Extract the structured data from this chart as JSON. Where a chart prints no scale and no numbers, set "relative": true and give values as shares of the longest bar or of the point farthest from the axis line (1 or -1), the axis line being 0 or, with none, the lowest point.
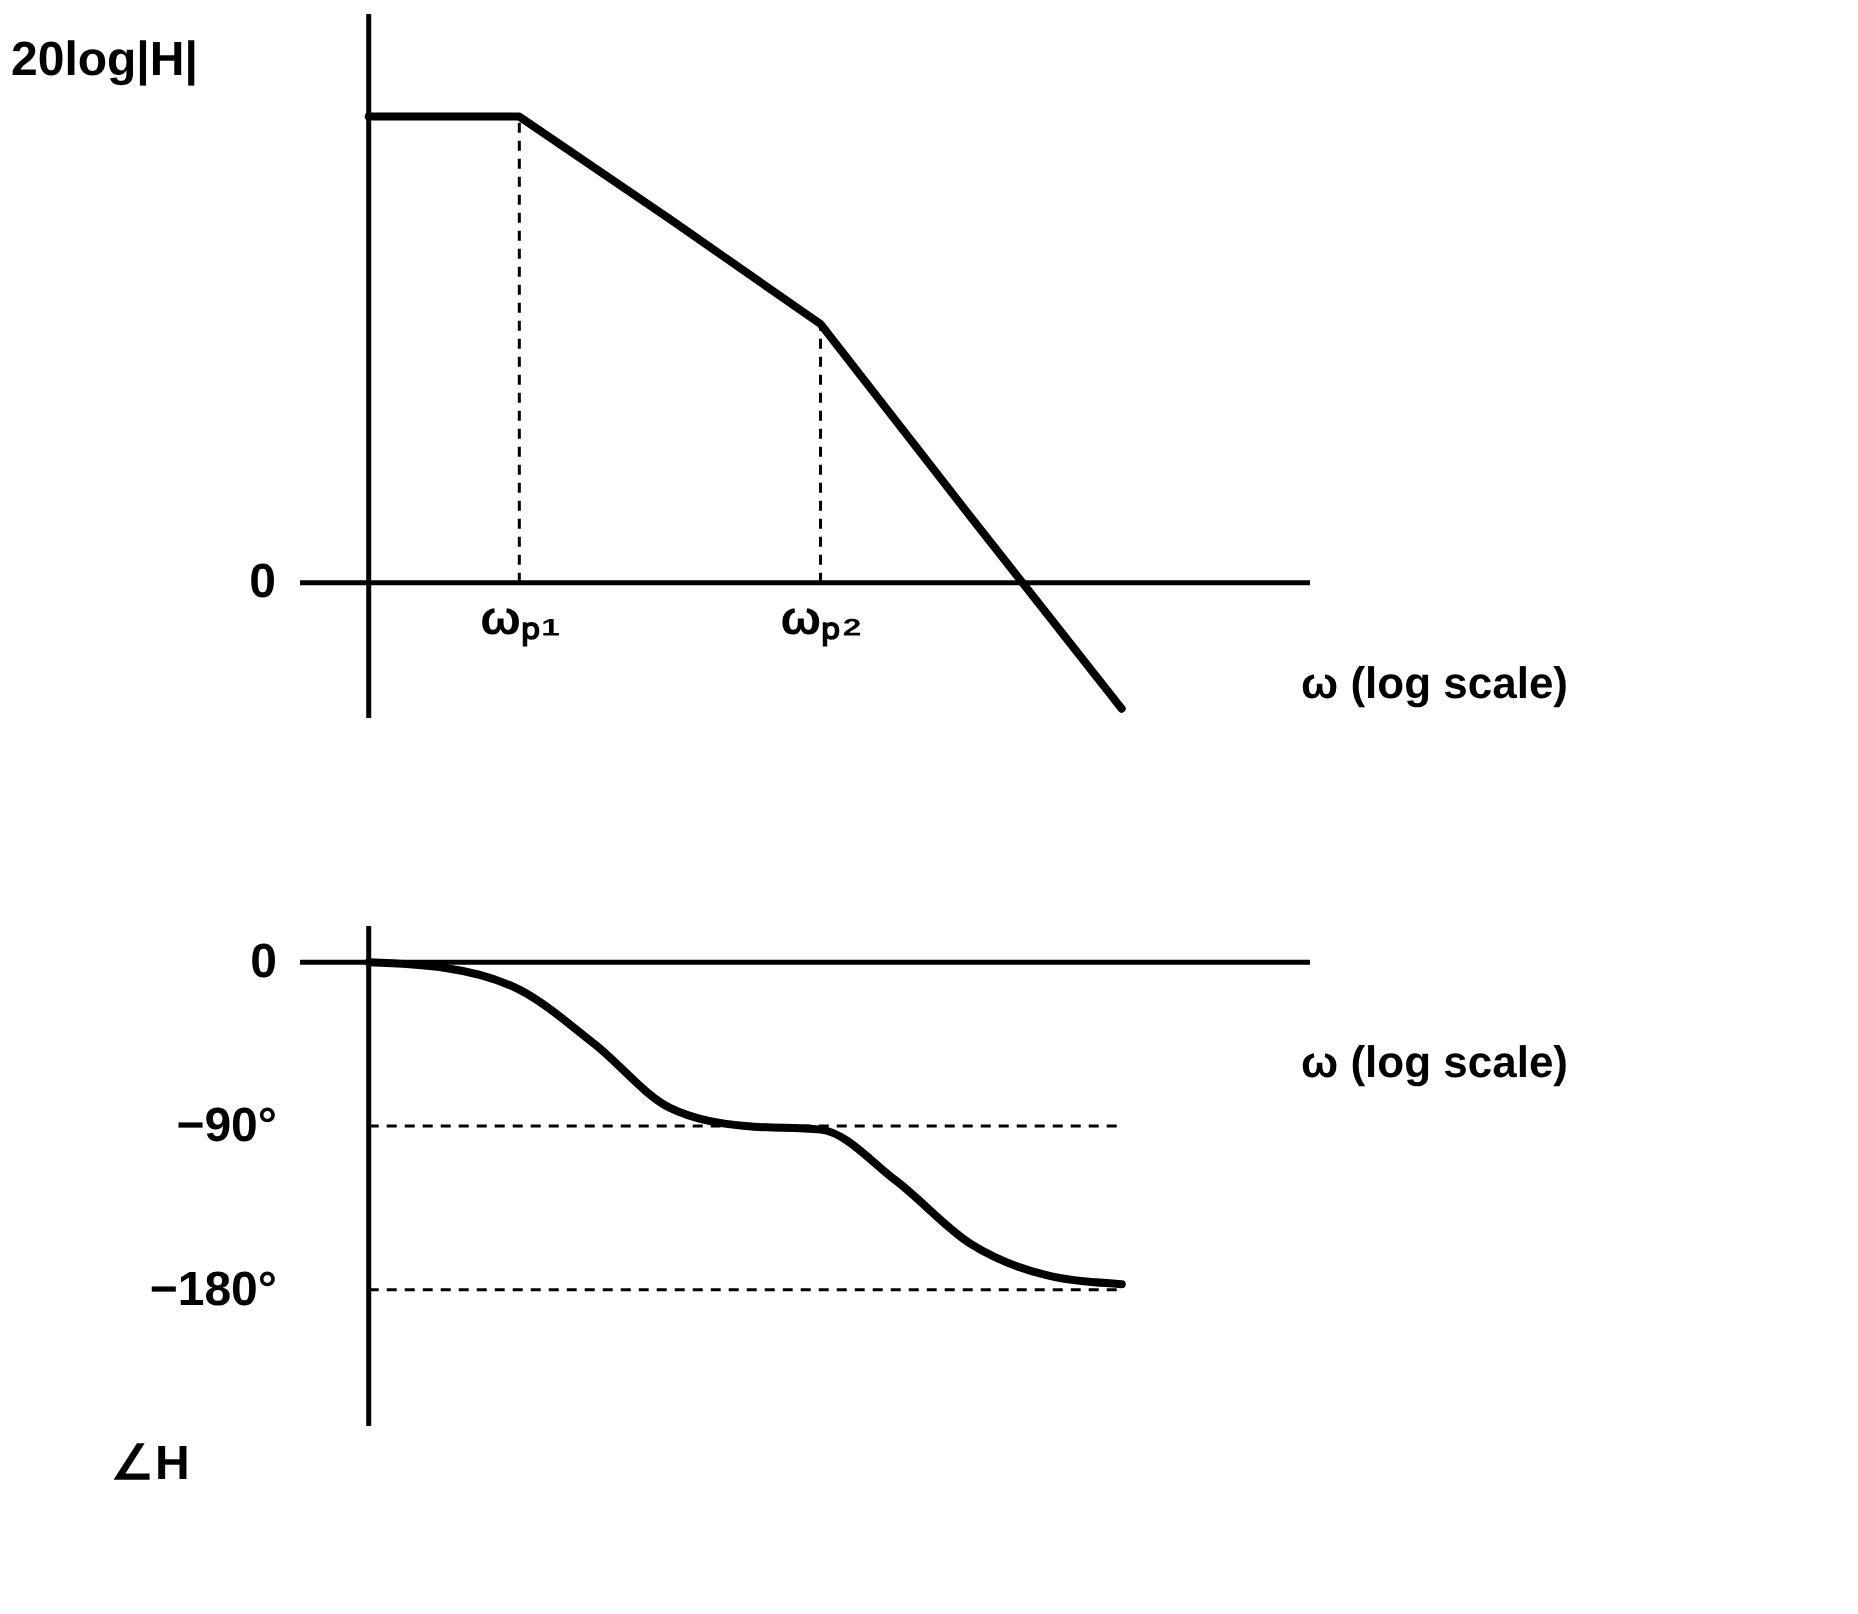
{
  "chart_data": [
    {
      "type": "line",
      "relative": true,
      "ylabel": "20log|H|",
      "xlabel": "ω (log scale)",
      "categories": [
        null,
        "ωₚ₁",
        null,
        "ωₚ₂",
        null,
        null
      ],
      "series": [
        {
          "color": "#000000",
          "values": [
            1,
            1,
            0.78,
            0.555,
            0.14,
            -0.27
          ]
        }
      ],
      "annotations": [
        "0"
      ],
      "ref_lines": [
        {
          "axis": "x",
          "value": "ωₚ₁",
          "line_style": "dashed"
        },
        {
          "axis": "x",
          "value": "ωₚ₂",
          "line_style": "dashed"
        }
      ],
      "grid": false
    },
    {
      "type": "line",
      "ylabel": "∠H",
      "xlabel": "ω (log scale)",
      "categories": [
        null,
        null,
        null,
        null,
        null,
        null,
        null,
        null,
        null,
        null,
        null
      ],
      "ylim": [
        -255,
        20
      ],
      "yticks": [
        0,
        {
          "value": -90,
          "label": "−90°"
        },
        {
          "value": -180,
          "label": "−180°"
        }
      ],
      "series": [
        {
          "color": "#000000",
          "values": [
            0,
            -3,
            -15,
            -45,
            -80,
            -90,
            -92,
            -120,
            -155,
            -172,
            -177
          ]
        }
      ],
      "ref_lines": [
        {
          "axis": "y",
          "value": -90,
          "line_style": "dashed"
        },
        {
          "axis": "y",
          "value": -180,
          "line_style": "dashed"
        }
      ],
      "grid": false
    }
  ]
}
